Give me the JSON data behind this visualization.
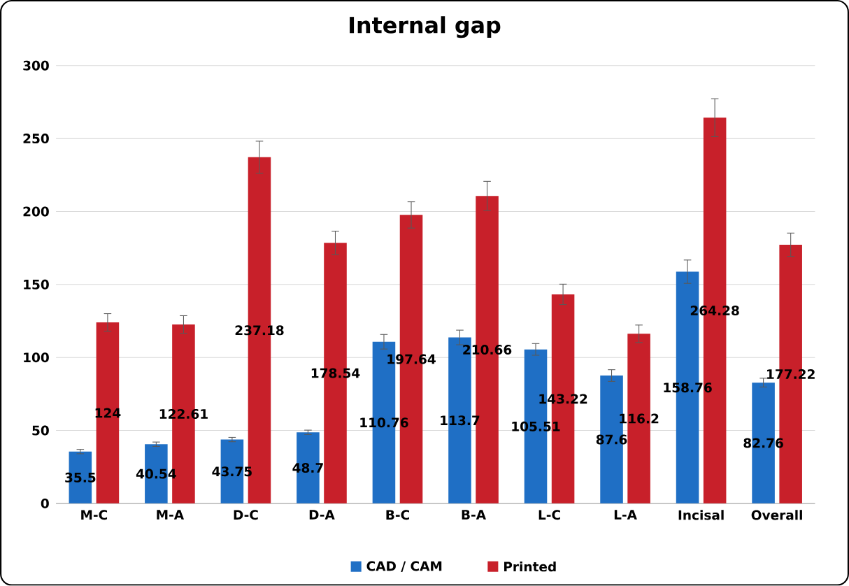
{
  "chart_data": {
    "type": "bar",
    "title": "Internal gap",
    "categories": [
      "M-C",
      "M-A",
      "D-C",
      "D-A",
      "B-C",
      "B-A",
      "L-C",
      "L-A",
      "Incisal",
      "Overall"
    ],
    "series": [
      {
        "name": "CAD / CAM",
        "color": "#1f6fc5",
        "values": [
          35.5,
          40.54,
          43.75,
          48.7,
          110.76,
          113.7,
          105.51,
          87.6,
          158.76,
          82.76
        ],
        "errors": [
          1.5,
          1.5,
          1.5,
          1.5,
          5,
          5,
          4,
          4,
          8,
          3
        ]
      },
      {
        "name": "Printed",
        "color": "#c8202a",
        "values": [
          124,
          122.61,
          237.18,
          178.54,
          197.64,
          210.66,
          143.22,
          116.2,
          264.28,
          177.22
        ],
        "errors": [
          6,
          6,
          11,
          8,
          9,
          10,
          7,
          6,
          13,
          8
        ]
      }
    ],
    "ylim": [
      0,
      300
    ],
    "yticks": [
      0,
      50,
      100,
      150,
      200,
      250,
      300
    ],
    "grid": "y",
    "legend": "bottom",
    "data_labels": true
  }
}
